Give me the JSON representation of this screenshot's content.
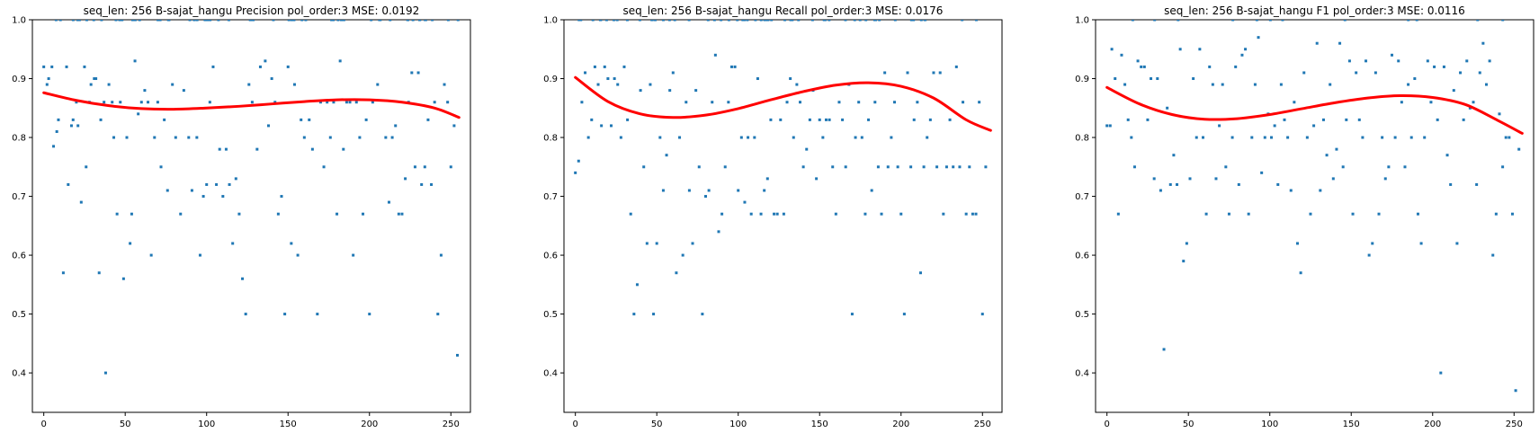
{
  "chart_data": [
    {
      "type": "scatter",
      "title": "seq_len: 256    B-sajat_hangu   Precision   pol_order:3   MSE: 0.0192",
      "xlabel": "",
      "ylabel": "",
      "xlim": [
        -7,
        262
      ],
      "ylim": [
        0.333,
        1.0
      ],
      "xticks": [
        "0",
        "50",
        "100",
        "150",
        "200",
        "250"
      ],
      "yticks": [
        "0.4",
        "0.5",
        "0.6",
        "0.7",
        "0.8",
        "0.9",
        "1.0"
      ],
      "grid": false,
      "series": [
        {
          "style": "scatter",
          "color": "#1f77b4",
          "x": [
            0,
            2,
            3,
            5,
            6,
            8,
            9,
            12,
            14,
            15,
            17,
            18,
            20,
            21,
            23,
            25,
            26,
            28,
            29,
            31,
            32,
            34,
            35,
            37,
            38,
            40,
            42,
            43,
            45,
            47,
            49,
            51,
            53,
            54,
            56,
            58,
            60,
            62,
            64,
            66,
            68,
            70,
            72,
            74,
            76,
            79,
            81,
            84,
            86,
            89,
            91,
            94,
            96,
            98,
            100,
            102,
            104,
            106,
            108,
            110,
            112,
            114,
            116,
            118,
            120,
            122,
            124,
            126,
            128,
            131,
            133,
            136,
            138,
            140,
            142,
            144,
            146,
            148,
            150,
            152,
            154,
            156,
            158,
            160,
            163,
            165,
            168,
            170,
            172,
            174,
            176,
            178,
            180,
            182,
            184,
            186,
            188,
            190,
            192,
            194,
            196,
            198,
            200,
            202,
            205,
            208,
            210,
            212,
            214,
            216,
            218,
            220,
            222,
            224,
            226,
            228,
            230,
            232,
            234,
            236,
            238,
            240,
            242,
            244,
            246,
            248,
            250,
            252,
            254
          ],
          "y": [
            0.92,
            0.89,
            0.9,
            0.92,
            0.785,
            0.81,
            0.83,
            0.57,
            0.92,
            0.72,
            0.82,
            0.83,
            0.86,
            0.82,
            0.69,
            0.92,
            0.75,
            0.86,
            0.89,
            0.9,
            0.9,
            0.57,
            0.83,
            0.86,
            0.4,
            0.89,
            0.86,
            0.8,
            0.67,
            0.86,
            0.56,
            0.8,
            0.62,
            0.67,
            0.93,
            0.84,
            0.86,
            0.88,
            0.86,
            0.6,
            0.8,
            0.86,
            0.75,
            0.83,
            0.71,
            0.89,
            0.8,
            0.67,
            0.88,
            0.8,
            0.71,
            0.8,
            0.6,
            0.7,
            0.72,
            0.86,
            0.92,
            0.72,
            0.78,
            0.7,
            0.78,
            0.72,
            0.62,
            0.73,
            0.67,
            0.56,
            0.5,
            0.89,
            0.86,
            0.78,
            0.92,
            0.93,
            0.82,
            0.9,
            0.86,
            0.67,
            0.7,
            0.5,
            0.92,
            0.62,
            0.89,
            0.6,
            0.83,
            0.8,
            0.83,
            0.78,
            0.5,
            0.86,
            0.75,
            0.86,
            0.8,
            0.86,
            0.67,
            0.93,
            0.78,
            0.86,
            0.86,
            0.6,
            0.86,
            0.8,
            0.67,
            0.83,
            0.5,
            0.86,
            0.89,
            0.33,
            0.8,
            0.69,
            0.8,
            0.82,
            0.67,
            0.67,
            0.73,
            0.86,
            0.91,
            0.75,
            0.91,
            0.72,
            0.75,
            0.83,
            0.72,
            0.86,
            0.5,
            0.6,
            0.89,
            0.86,
            0.75,
            0.82,
            0.43
          ],
          "top_band_points": 60
        },
        {
          "style": "line",
          "color": "#ff0000",
          "x": [
            0,
            20,
            40,
            60,
            80,
            100,
            120,
            140,
            160,
            180,
            200,
            220,
            240,
            255
          ],
          "y": [
            0.876,
            0.863,
            0.854,
            0.849,
            0.848,
            0.85,
            0.853,
            0.857,
            0.861,
            0.864,
            0.864,
            0.86,
            0.85,
            0.834
          ]
        }
      ]
    },
    {
      "type": "scatter",
      "title": "seq_len: 256    B-sajat_hangu   Recall   pol_order:3   MSE: 0.0176",
      "xlabel": "",
      "ylabel": "",
      "xlim": [
        -7,
        262
      ],
      "ylim": [
        0.333,
        1.0
      ],
      "xticks": [
        "0",
        "50",
        "100",
        "150",
        "200",
        "250"
      ],
      "yticks": [
        "0.4",
        "0.5",
        "0.6",
        "0.7",
        "0.8",
        "0.9",
        "1.0"
      ],
      "grid": false,
      "series": [
        {
          "style": "scatter",
          "color": "#1f77b4",
          "x": [
            0,
            2,
            4,
            6,
            8,
            10,
            12,
            14,
            16,
            18,
            20,
            22,
            24,
            26,
            28,
            30,
            32,
            34,
            36,
            38,
            40,
            42,
            44,
            46,
            48,
            50,
            52,
            54,
            56,
            58,
            60,
            62,
            64,
            66,
            68,
            70,
            72,
            74,
            76,
            78,
            80,
            82,
            84,
            86,
            88,
            90,
            92,
            94,
            96,
            98,
            100,
            102,
            104,
            106,
            108,
            110,
            112,
            114,
            116,
            118,
            120,
            122,
            124,
            126,
            128,
            130,
            132,
            134,
            136,
            138,
            140,
            142,
            144,
            146,
            148,
            150,
            152,
            154,
            156,
            158,
            160,
            162,
            164,
            166,
            168,
            170,
            172,
            174,
            176,
            178,
            180,
            182,
            184,
            186,
            188,
            190,
            192,
            194,
            196,
            198,
            200,
            202,
            204,
            206,
            208,
            210,
            212,
            214,
            216,
            218,
            220,
            222,
            224,
            226,
            228,
            230,
            232,
            234,
            236,
            238,
            240,
            242,
            244,
            246,
            248,
            250,
            252,
            254
          ],
          "y": [
            0.74,
            0.76,
            0.86,
            0.91,
            0.8,
            0.83,
            0.92,
            0.89,
            0.82,
            0.92,
            0.9,
            0.82,
            0.9,
            0.89,
            0.8,
            0.92,
            0.83,
            0.67,
            0.5,
            0.55,
            0.88,
            0.75,
            0.62,
            0.89,
            0.5,
            0.62,
            0.8,
            0.71,
            0.77,
            0.88,
            0.91,
            0.57,
            0.8,
            0.6,
            0.86,
            0.71,
            0.62,
            0.88,
            0.75,
            0.5,
            0.7,
            0.71,
            0.86,
            0.94,
            0.64,
            0.67,
            0.75,
            0.86,
            0.92,
            0.92,
            0.71,
            0.8,
            0.69,
            0.8,
            0.67,
            0.8,
            0.9,
            0.67,
            0.71,
            0.73,
            0.83,
            0.67,
            0.67,
            0.83,
            0.67,
            0.86,
            0.9,
            0.8,
            0.89,
            0.86,
            0.75,
            0.78,
            0.83,
            0.88,
            0.73,
            0.83,
            0.8,
            0.83,
            0.83,
            0.75,
            0.67,
            0.86,
            0.83,
            0.75,
            0.89,
            0.5,
            0.8,
            0.86,
            0.8,
            0.67,
            0.83,
            0.71,
            0.86,
            0.75,
            0.67,
            0.91,
            0.75,
            0.8,
            0.86,
            0.75,
            0.67,
            0.5,
            0.91,
            0.75,
            0.83,
            0.86,
            0.57,
            0.75,
            0.8,
            0.83,
            0.91,
            0.75,
            0.91,
            0.67,
            0.75,
            0.83,
            0.75,
            0.92,
            0.75,
            0.86,
            0.67,
            0.75,
            0.67,
            0.67,
            0.86,
            0.5,
            0.75,
            0.33
          ],
          "top_band_points": 55
        },
        {
          "style": "line",
          "color": "#ff0000",
          "x": [
            0,
            20,
            40,
            60,
            80,
            100,
            120,
            140,
            160,
            180,
            200,
            220,
            240,
            255
          ],
          "y": [
            0.902,
            0.861,
            0.84,
            0.834,
            0.838,
            0.849,
            0.864,
            0.878,
            0.889,
            0.893,
            0.887,
            0.867,
            0.83,
            0.812
          ]
        }
      ]
    },
    {
      "type": "scatter",
      "title": "seq_len: 256    B-sajat_hangu   F1   pol_order:3   MSE: 0.0116",
      "xlabel": "",
      "ylabel": "",
      "xlim": [
        -7,
        262
      ],
      "ylim": [
        0.333,
        1.0
      ],
      "xticks": [
        "0",
        "50",
        "100",
        "150",
        "200",
        "250"
      ],
      "yticks": [
        "0.4",
        "0.5",
        "0.6",
        "0.7",
        "0.8",
        "0.9",
        "1.0"
      ],
      "grid": false,
      "series": [
        {
          "style": "scatter",
          "color": "#1f77b4",
          "x": [
            0,
            2,
            3,
            5,
            7,
            9,
            11,
            13,
            15,
            17,
            19,
            21,
            23,
            25,
            27,
            29,
            31,
            33,
            35,
            37,
            39,
            41,
            43,
            45,
            47,
            49,
            51,
            53,
            55,
            57,
            59,
            61,
            63,
            65,
            67,
            69,
            71,
            73,
            75,
            77,
            79,
            81,
            83,
            85,
            87,
            89,
            91,
            93,
            95,
            97,
            99,
            101,
            103,
            105,
            107,
            109,
            111,
            113,
            115,
            117,
            119,
            121,
            123,
            125,
            127,
            129,
            131,
            133,
            135,
            137,
            139,
            141,
            143,
            145,
            147,
            149,
            151,
            153,
            155,
            157,
            159,
            161,
            163,
            165,
            167,
            169,
            171,
            173,
            175,
            177,
            179,
            181,
            183,
            185,
            187,
            189,
            191,
            193,
            195,
            197,
            199,
            201,
            203,
            205,
            207,
            209,
            211,
            213,
            215,
            217,
            219,
            221,
            223,
            225,
            227,
            229,
            231,
            233,
            235,
            237,
            239,
            241,
            243,
            245,
            247,
            249,
            251,
            253
          ],
          "y": [
            0.82,
            0.82,
            0.95,
            0.9,
            0.67,
            0.94,
            0.89,
            0.83,
            0.8,
            0.75,
            0.93,
            0.92,
            0.92,
            0.83,
            0.9,
            0.73,
            0.9,
            0.71,
            0.44,
            0.85,
            0.72,
            0.77,
            0.72,
            0.95,
            0.59,
            0.62,
            0.73,
            0.9,
            0.8,
            0.95,
            0.8,
            0.67,
            0.92,
            0.89,
            0.73,
            0.82,
            0.89,
            0.75,
            0.67,
            0.8,
            0.92,
            0.72,
            0.94,
            0.95,
            0.67,
            0.8,
            0.89,
            0.97,
            0.74,
            0.8,
            0.84,
            0.8,
            0.82,
            0.72,
            0.89,
            0.83,
            0.8,
            0.71,
            0.86,
            0.62,
            0.57,
            0.91,
            0.8,
            0.67,
            0.82,
            0.96,
            0.71,
            0.83,
            0.77,
            0.89,
            0.73,
            0.78,
            0.96,
            0.75,
            0.83,
            0.93,
            0.67,
            0.91,
            0.83,
            0.8,
            0.93,
            0.6,
            0.62,
            0.91,
            0.67,
            0.8,
            0.73,
            0.75,
            0.94,
            0.8,
            0.93,
            0.86,
            0.75,
            0.89,
            0.8,
            0.9,
            0.67,
            0.62,
            0.8,
            0.93,
            0.86,
            0.92,
            0.83,
            0.4,
            0.92,
            0.77,
            0.72,
            0.88,
            0.62,
            0.91,
            0.83,
            0.93,
            0.85,
            0.86,
            0.72,
            0.91,
            0.96,
            0.89,
            0.93,
            0.6,
            0.67,
            0.84,
            0.75,
            0.8,
            0.8,
            0.67,
            0.37,
            0.78
          ],
          "top_band_points": 12
        },
        {
          "style": "line",
          "color": "#ff0000",
          "x": [
            0,
            20,
            40,
            60,
            80,
            100,
            120,
            140,
            160,
            180,
            200,
            220,
            240,
            255
          ],
          "y": [
            0.885,
            0.857,
            0.839,
            0.831,
            0.832,
            0.839,
            0.849,
            0.859,
            0.867,
            0.871,
            0.868,
            0.856,
            0.829,
            0.807
          ]
        }
      ]
    }
  ]
}
